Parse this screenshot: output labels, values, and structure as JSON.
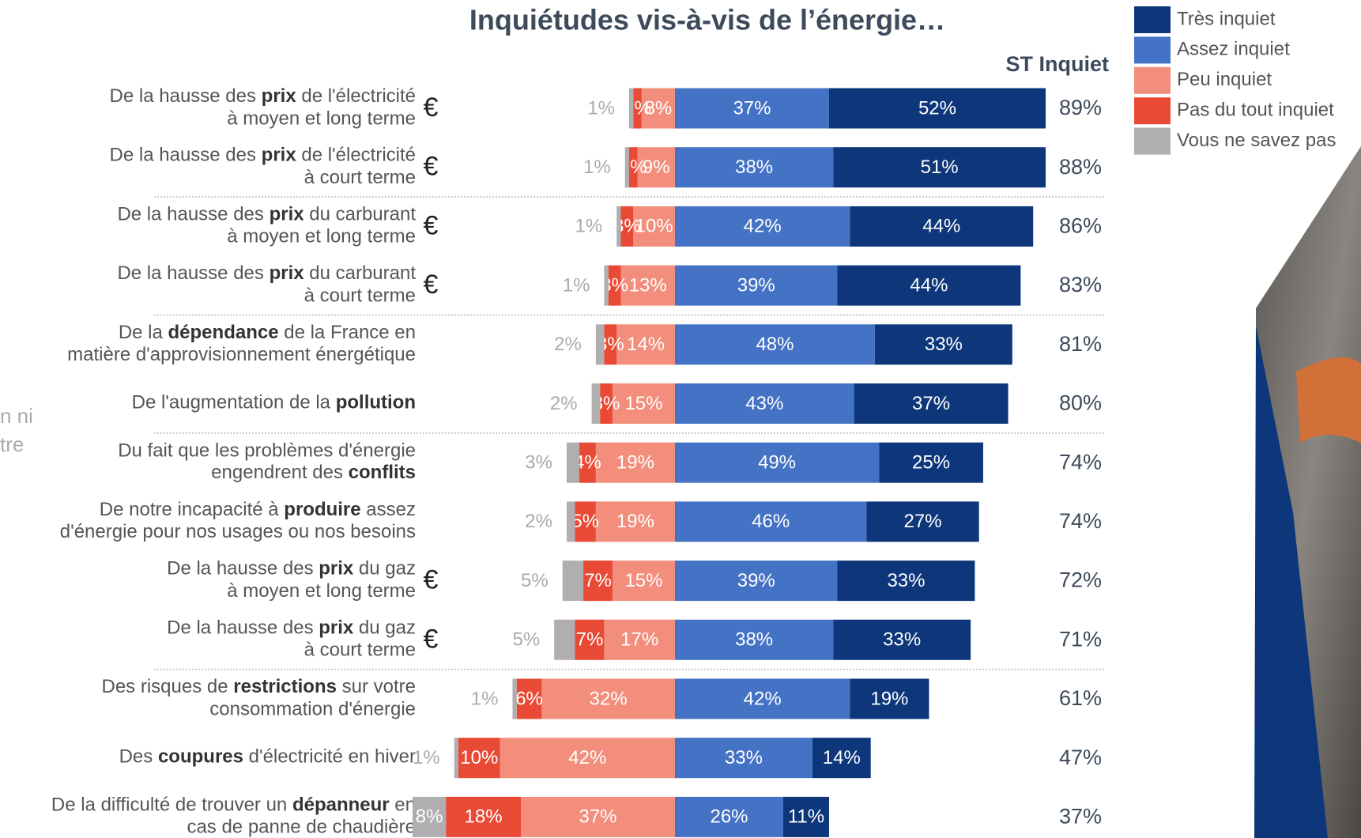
{
  "chart_data": {
    "type": "diverging_bar",
    "title": "Inquiétudes vis-à-vis de l’énergie…",
    "total_header": "ST Inquiet",
    "side_fragment": [
      "n ni",
      "tre"
    ],
    "categories": [
      [
        "De la hausse des prix de l'électricité",
        "à moyen et long terme"
      ],
      [
        "De la hausse des prix de l'électricité",
        "à court terme"
      ],
      [
        "De la hausse des prix du carburant",
        "à moyen et long terme"
      ],
      [
        "De la hausse des prix du carburant",
        "à court terme"
      ],
      [
        "De la dépendance de la France en",
        "matière d'approvisionnement énergétique"
      ],
      [
        "De l'augmentation de la pollution"
      ],
      [
        "Du fait que les problèmes d'énergie",
        "engendrent des conflits"
      ],
      [
        "De notre incapacité à produire assez",
        "d'énergie pour nos usages ou nos besoins"
      ],
      [
        "De la hausse des prix du gaz",
        "à moyen et long terme"
      ],
      [
        "De la hausse des prix du gaz",
        "à court terme"
      ],
      [
        "Des risques de restrictions sur votre",
        "consommation d'énergie"
      ],
      [
        "Des coupures d'électricité en hiver"
      ],
      [
        "De la difficulté de trouver un dépanneur en",
        "cas de panne de chaudière"
      ]
    ],
    "highlights": [
      "prix",
      "prix",
      "prix",
      "prix",
      "dépendance",
      "pollution",
      "conflits",
      "produire",
      "prix",
      "prix",
      "restrictions",
      "coupures",
      "dépanneur"
    ],
    "icons": [
      "€",
      "€",
      "€",
      "€",
      null,
      null,
      null,
      null,
      "€",
      "€",
      null,
      null,
      null
    ],
    "group_breaks": [
      2,
      4,
      6,
      10
    ],
    "series": [
      {
        "name": "Très inquiet",
        "color": "#0d377a",
        "side": "positive",
        "values": [
          52,
          51,
          44,
          44,
          33,
          37,
          25,
          27,
          33,
          33,
          19,
          14,
          11
        ],
        "value_labels": [
          "52%",
          "51%",
          "44%",
          "44%",
          "33%",
          "37%",
          "25%",
          "27%",
          "33%",
          "33%",
          "19%",
          "14%",
          "11%"
        ]
      },
      {
        "name": "Assez inquiet",
        "color": "#4472c4",
        "side": "positive",
        "values": [
          37,
          38,
          42,
          39,
          48,
          43,
          49,
          46,
          39,
          38,
          42,
          33,
          26
        ],
        "value_labels": [
          "37%",
          "38%",
          "42%",
          "39%",
          "48%",
          "43%",
          "49%",
          "46%",
          "39%",
          "38%",
          "42%",
          "33%",
          "26%"
        ]
      },
      {
        "name": "Peu inquiet",
        "color": "#f28e7b",
        "side": "negative",
        "values": [
          8,
          9,
          10,
          13,
          14,
          15,
          19,
          19,
          15,
          17,
          32,
          42,
          37
        ],
        "value_labels": [
          "8%",
          "9%",
          "10%",
          "13%",
          "14%",
          "15%",
          "19%",
          "19%",
          "15%",
          "17%",
          "32%",
          "42%",
          "37%"
        ]
      },
      {
        "name": "Pas du tout inquiet",
        "color": "#e94a35",
        "side": "negative",
        "values": [
          2,
          2,
          3,
          3,
          3,
          3,
          4,
          5,
          7,
          7,
          6,
          10,
          18
        ],
        "value_labels": [
          "2%",
          "2%",
          "3%",
          "3%",
          "3%",
          "3%",
          "4%",
          "5%",
          "7%",
          "7%",
          "6%",
          "10%",
          "18%"
        ]
      },
      {
        "name": "Vous ne savez pas",
        "color": "#b0aeae",
        "side": "negative",
        "values": [
          1,
          1,
          1,
          1,
          2,
          2,
          3,
          2,
          5,
          5,
          1,
          1,
          8
        ],
        "value_labels": [
          "1%",
          "1%",
          "1%",
          "1%",
          "2%",
          "2%",
          "3%",
          "2%",
          "5%",
          "5%",
          "1%",
          "1%",
          "8%"
        ]
      }
    ],
    "totals": [
      89,
      88,
      86,
      83,
      81,
      80,
      74,
      74,
      72,
      71,
      61,
      47,
      37
    ],
    "total_labels": [
      "89%",
      "88%",
      "86%",
      "83%",
      "81%",
      "80%",
      "74%",
      "74%",
      "72%",
      "71%",
      "61%",
      "47%",
      "37%"
    ],
    "xlim": [
      -63,
      89
    ]
  }
}
